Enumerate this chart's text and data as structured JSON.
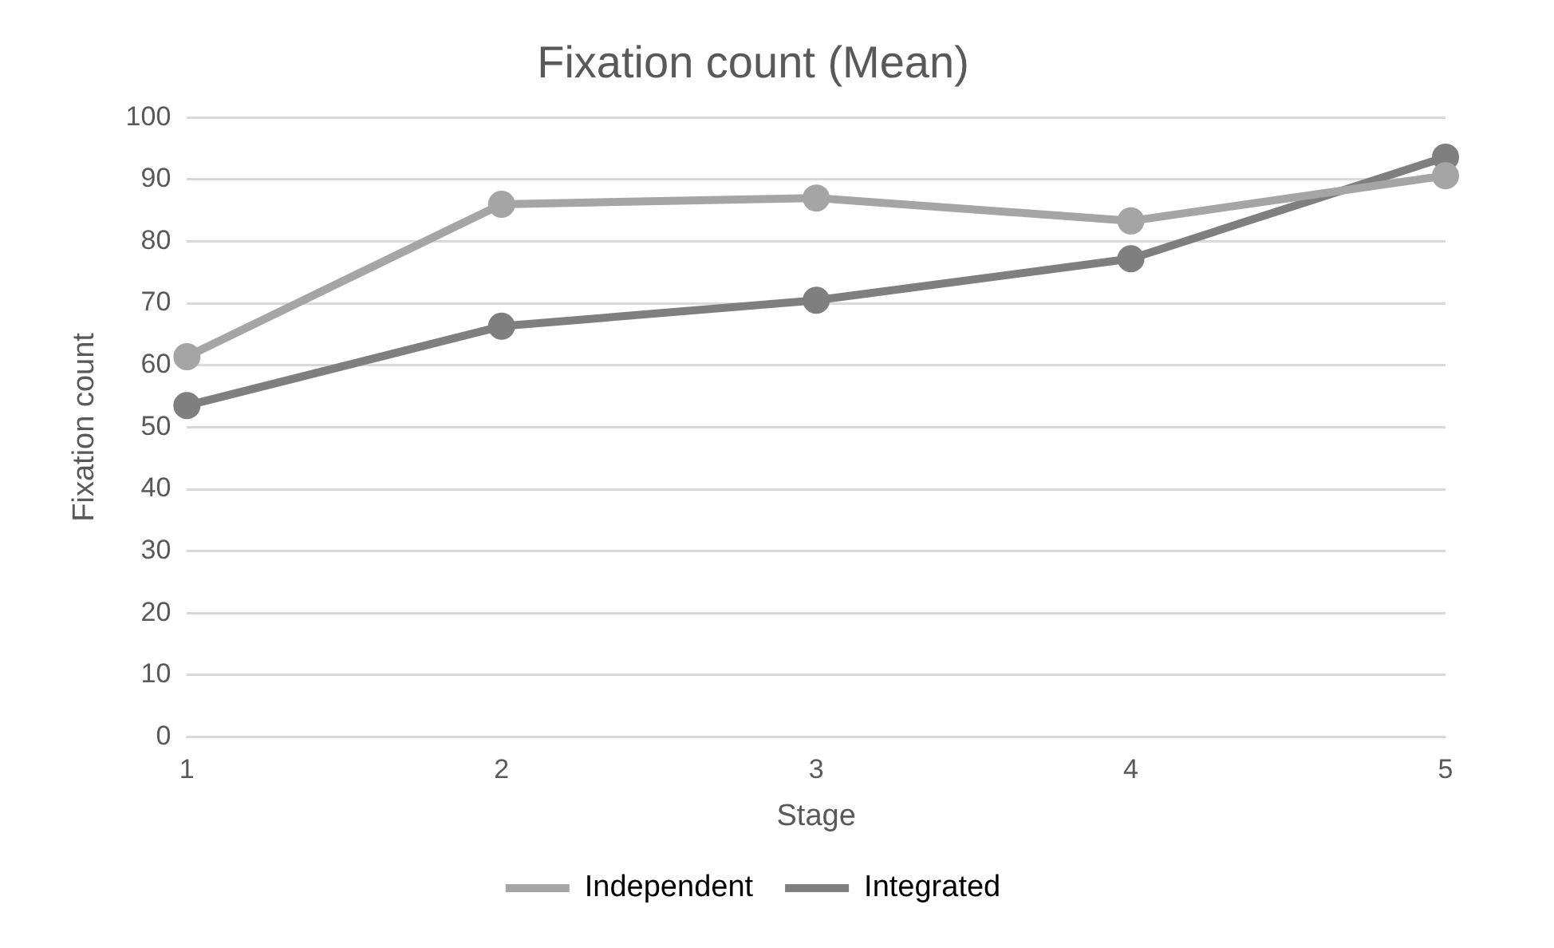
{
  "chart_data": {
    "type": "line",
    "title": "Fixation count (Mean)",
    "xlabel": "Stage",
    "ylabel": "Fixation count",
    "categories": [
      "1",
      "2",
      "3",
      "4",
      "5"
    ],
    "series": [
      {
        "name": "Independent",
        "color": "#a5a5a5",
        "values": [
          61.4,
          86,
          87,
          83.3,
          90.6
        ]
      },
      {
        "name": "Integrated",
        "color": "#7f7f7f",
        "values": [
          53.5,
          66.3,
          70.5,
          77.2,
          93.6
        ]
      }
    ],
    "ylim": [
      0,
      100
    ],
    "yticks": [
      0,
      10,
      20,
      30,
      40,
      50,
      60,
      70,
      80,
      90,
      100
    ],
    "grid": "y",
    "legend": "bottom",
    "marker": "circle",
    "line_style": "solid"
  }
}
